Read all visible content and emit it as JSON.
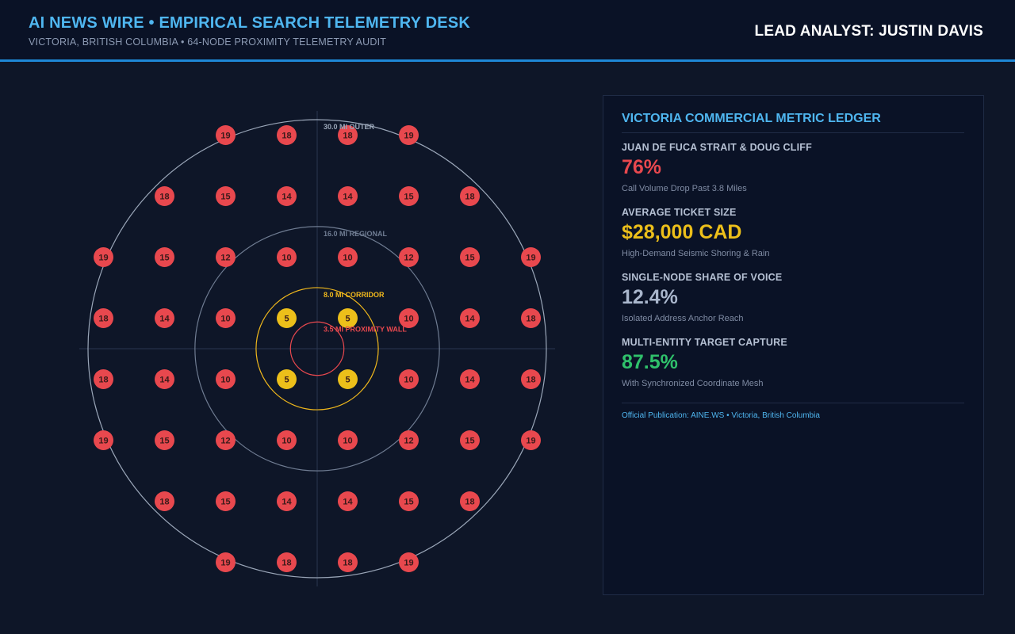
{
  "header": {
    "title": "AI NEWS WIRE • EMPIRICAL SEARCH TELEMETRY DESK",
    "subtitle": "VICTORIA, BRITISH COLUMBIA • 64-NODE PROXIMITY TELEMETRY AUDIT",
    "analyst": "LEAD ANALYST: JUSTIN DAVIS"
  },
  "diagram": {
    "rings": [
      {
        "label": "30.0 MI OUTER",
        "radius_mi": 30.0,
        "color": "#9aa6b8"
      },
      {
        "label": "16.0 MI REGIONAL",
        "radius_mi": 16.0,
        "color": "#6f7c92"
      },
      {
        "label": "8.0 MI CORRIDOR",
        "radius_mi": 8.0,
        "color": "#f0b81c"
      },
      {
        "label": "3.5 MI PROXIMITY WALL",
        "radius_mi": 3.5,
        "color": "#e8484e"
      }
    ],
    "node_colors": {
      "core": "#ecbf1a",
      "default": "#e8484e"
    },
    "grid_rows": [
      [
        19,
        18,
        18,
        19
      ],
      [
        18,
        15,
        14,
        14,
        15,
        18
      ],
      [
        19,
        15,
        12,
        10,
        10,
        12,
        15,
        19
      ],
      [
        18,
        14,
        10,
        5,
        5,
        10,
        14,
        18
      ],
      [
        18,
        14,
        10,
        5,
        5,
        10,
        14,
        18
      ],
      [
        19,
        15,
        12,
        10,
        10,
        12,
        15,
        19
      ],
      [
        18,
        15,
        14,
        14,
        15,
        18
      ],
      [
        19,
        18,
        18,
        19
      ]
    ]
  },
  "panel": {
    "title": "VICTORIA COMMERCIAL METRIC LEDGER",
    "metrics": [
      {
        "label": "JUAN DE FUCA STRAIT & DOUG CLIFF",
        "value": "76%",
        "desc": "Call Volume Drop Past 3.8 Miles",
        "color": "#e8484e"
      },
      {
        "label": "AVERAGE TICKET SIZE",
        "value": "$28,000 CAD",
        "desc": "High-Demand Seismic Shoring & Rain",
        "color": "#ecbf1a"
      },
      {
        "label": "SINGLE-NODE SHARE OF VOICE",
        "value": "12.4%",
        "desc": "Isolated Address Anchor Reach",
        "color": "#a9b6cc"
      },
      {
        "label": "MULTI-ENTITY TARGET CAPTURE",
        "value": "87.5%",
        "desc": "With Synchronized Coordinate Mesh",
        "color": "#2fc16b"
      }
    ],
    "footer": "Official Publication: AINE.WS • Victoria, British Columbia"
  }
}
